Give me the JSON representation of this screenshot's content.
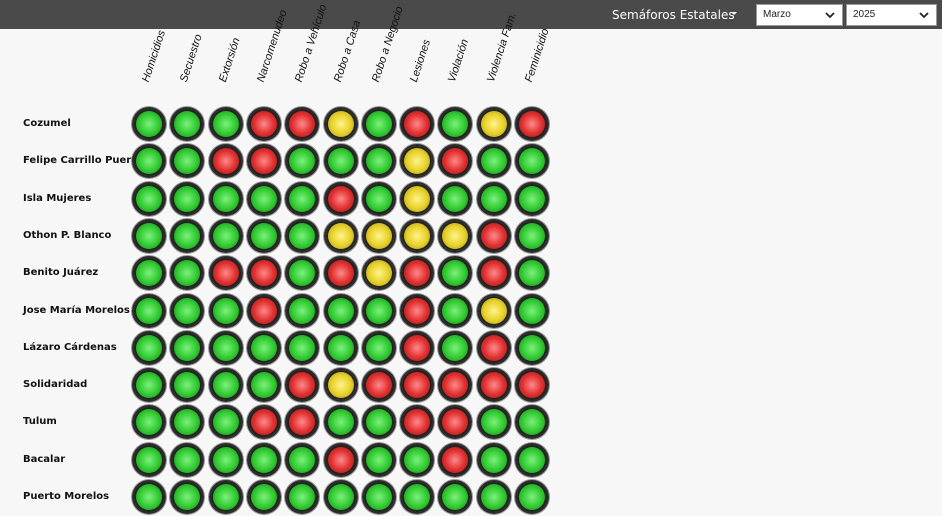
{
  "header": {
    "menu_title": "Semáforos Estatales",
    "month_select": {
      "value": "Marzo"
    },
    "year_select": {
      "value": "2025"
    }
  },
  "colors": {
    "green": "#33cc33",
    "red": "#e23232",
    "yellow": "#e8d22c",
    "header_bg": "#4a4a4a"
  },
  "columns": [
    "Homicidios",
    "Secuestro",
    "Extorsión",
    "Narcomenudeo",
    "Robo a Vehículo",
    "Robo a Casa",
    "Robo a Negocio",
    "Lesiones",
    "Violación",
    "Violencia Fam.",
    "Feminicidio"
  ],
  "rows": [
    {
      "name": "Cozumel",
      "lights": [
        "green",
        "green",
        "green",
        "red",
        "red",
        "yellow",
        "green",
        "red",
        "green",
        "yellow",
        "red"
      ]
    },
    {
      "name": "Felipe Carrillo Puerto",
      "lights": [
        "green",
        "green",
        "red",
        "red",
        "green",
        "green",
        "green",
        "yellow",
        "red",
        "green",
        "green"
      ]
    },
    {
      "name": "Isla Mujeres",
      "lights": [
        "green",
        "green",
        "green",
        "green",
        "green",
        "red",
        "green",
        "yellow",
        "green",
        "green",
        "green"
      ]
    },
    {
      "name": "Othon P. Blanco",
      "lights": [
        "green",
        "green",
        "green",
        "green",
        "green",
        "yellow",
        "yellow",
        "yellow",
        "yellow",
        "red",
        "green"
      ]
    },
    {
      "name": "Benito Juárez",
      "lights": [
        "green",
        "green",
        "red",
        "red",
        "green",
        "red",
        "yellow",
        "red",
        "green",
        "red",
        "green"
      ]
    },
    {
      "name": "Jose María Morelos",
      "lights": [
        "green",
        "green",
        "green",
        "red",
        "green",
        "green",
        "green",
        "red",
        "green",
        "yellow",
        "green"
      ]
    },
    {
      "name": "Lázaro Cárdenas",
      "lights": [
        "green",
        "green",
        "green",
        "green",
        "green",
        "green",
        "green",
        "red",
        "green",
        "red",
        "green"
      ]
    },
    {
      "name": "Solidaridad",
      "lights": [
        "green",
        "green",
        "green",
        "green",
        "red",
        "yellow",
        "red",
        "red",
        "red",
        "red",
        "red"
      ]
    },
    {
      "name": "Tulum",
      "lights": [
        "green",
        "green",
        "green",
        "red",
        "red",
        "green",
        "green",
        "red",
        "red",
        "green",
        "green"
      ]
    },
    {
      "name": "Bacalar",
      "lights": [
        "green",
        "green",
        "green",
        "green",
        "green",
        "red",
        "green",
        "green",
        "red",
        "green",
        "green"
      ]
    },
    {
      "name": "Puerto Morelos",
      "lights": [
        "green",
        "green",
        "green",
        "green",
        "green",
        "green",
        "green",
        "green",
        "green",
        "green",
        "green"
      ]
    }
  ]
}
